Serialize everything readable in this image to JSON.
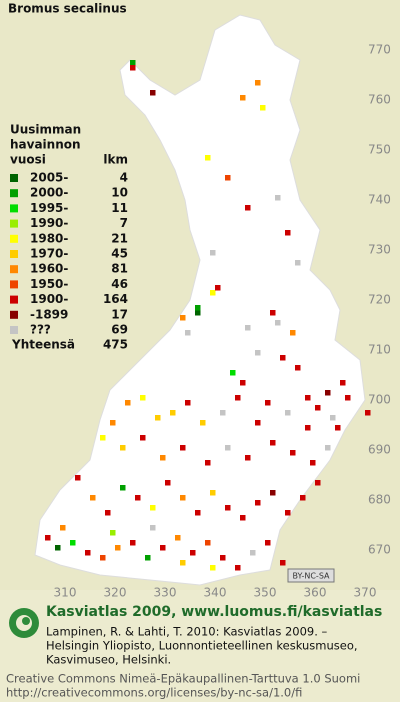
{
  "chart_data": {
    "type": "grid-map",
    "title": "Bromus secalinus",
    "legend_title": [
      "Uusimman",
      "havainnon",
      "vuosi"
    ],
    "count_header": "lkm",
    "legend": [
      {
        "label": "2005-",
        "count": 4,
        "color": "#006400"
      },
      {
        "label": "2000-",
        "count": 10,
        "color": "#00a000"
      },
      {
        "label": "1995-",
        "count": 11,
        "color": "#00dd00"
      },
      {
        "label": "1990-",
        "count": 7,
        "color": "#99ee00"
      },
      {
        "label": "1980-",
        "count": 21,
        "color": "#ffff00"
      },
      {
        "label": "1970-",
        "count": 45,
        "color": "#ffcc00"
      },
      {
        "label": "1960-",
        "count": 81,
        "color": "#ff8800"
      },
      {
        "label": "1950-",
        "count": 46,
        "color": "#ee4400"
      },
      {
        "label": "1900-",
        "count": 164,
        "color": "#cc0000"
      },
      {
        "label": "-1899",
        "count": 17,
        "color": "#880000"
      },
      {
        "label": "???",
        "count": 69,
        "color": "#c4c4c4"
      }
    ],
    "total_label": "Yhteensä",
    "total": 475,
    "xlim": [
      297,
      374
    ],
    "ylim": [
      662,
      780
    ],
    "yticks": [
      770,
      760,
      750,
      740,
      730,
      720,
      710,
      700,
      690,
      680,
      670
    ],
    "xticks": [
      310,
      320,
      330,
      340,
      350,
      360,
      370
    ],
    "squares": [
      [
        323,
        767,
        1
      ],
      [
        323,
        766,
        8
      ],
      [
        327,
        761,
        9
      ],
      [
        348,
        763,
        6
      ],
      [
        349,
        758,
        4
      ],
      [
        338,
        748,
        4
      ],
      [
        342,
        744,
        7
      ],
      [
        346,
        738,
        8
      ],
      [
        354,
        733,
        8
      ],
      [
        352,
        740,
        10
      ],
      [
        345,
        760,
        6
      ],
      [
        339,
        729,
        10
      ],
      [
        356,
        727,
        10
      ],
      [
        339,
        721,
        4
      ],
      [
        340,
        722,
        8
      ],
      [
        336,
        717,
        0
      ],
      [
        336,
        718,
        1
      ],
      [
        333,
        716,
        6
      ],
      [
        334,
        713,
        10
      ],
      [
        346,
        714,
        10
      ],
      [
        351,
        717,
        8
      ],
      [
        352,
        715,
        10
      ],
      [
        355,
        713,
        6
      ],
      [
        343,
        705,
        2
      ],
      [
        345,
        703,
        8
      ],
      [
        348,
        709,
        10
      ],
      [
        353,
        708,
        8
      ],
      [
        356,
        706,
        8
      ],
      [
        358,
        700,
        8
      ],
      [
        360,
        698,
        8
      ],
      [
        362,
        701,
        9
      ],
      [
        365,
        703,
        8
      ],
      [
        366,
        700,
        8
      ],
      [
        363,
        696,
        10
      ],
      [
        358,
        694,
        8
      ],
      [
        354,
        697,
        10
      ],
      [
        350,
        699,
        8
      ],
      [
        348,
        695,
        8
      ],
      [
        344,
        700,
        8
      ],
      [
        341,
        697,
        10
      ],
      [
        337,
        695,
        5
      ],
      [
        334,
        699,
        8
      ],
      [
        331,
        697,
        5
      ],
      [
        328,
        696,
        5
      ],
      [
        325,
        700,
        4
      ],
      [
        322,
        699,
        6
      ],
      [
        319,
        695,
        6
      ],
      [
        317,
        692,
        4
      ],
      [
        321,
        690,
        5
      ],
      [
        325,
        692,
        8
      ],
      [
        329,
        688,
        6
      ],
      [
        333,
        690,
        8
      ],
      [
        338,
        687,
        8
      ],
      [
        342,
        690,
        10
      ],
      [
        346,
        688,
        8
      ],
      [
        351,
        691,
        8
      ],
      [
        355,
        689,
        8
      ],
      [
        359,
        687,
        8
      ],
      [
        362,
        690,
        10
      ],
      [
        364,
        694,
        8
      ],
      [
        370,
        697,
        8
      ],
      [
        312,
        684,
        8
      ],
      [
        315,
        680,
        6
      ],
      [
        318,
        677,
        8
      ],
      [
        321,
        682,
        1
      ],
      [
        324,
        680,
        8
      ],
      [
        327,
        678,
        4
      ],
      [
        330,
        683,
        8
      ],
      [
        333,
        680,
        6
      ],
      [
        336,
        677,
        8
      ],
      [
        339,
        681,
        5
      ],
      [
        342,
        678,
        8
      ],
      [
        345,
        676,
        8
      ],
      [
        348,
        679,
        8
      ],
      [
        351,
        681,
        9
      ],
      [
        354,
        677,
        8
      ],
      [
        357,
        680,
        8
      ],
      [
        360,
        683,
        8
      ],
      [
        306,
        672,
        8
      ],
      [
        308,
        670,
        0
      ],
      [
        311,
        671,
        2
      ],
      [
        314,
        669,
        8
      ],
      [
        317,
        668,
        7
      ],
      [
        320,
        670,
        6
      ],
      [
        323,
        671,
        8
      ],
      [
        326,
        668,
        1
      ],
      [
        329,
        670,
        8
      ],
      [
        332,
        672,
        6
      ],
      [
        335,
        669,
        8
      ],
      [
        338,
        671,
        7
      ],
      [
        341,
        668,
        8
      ],
      [
        344,
        666,
        8
      ],
      [
        347,
        669,
        10
      ],
      [
        350,
        671,
        8
      ],
      [
        353,
        667,
        8
      ],
      [
        319,
        673,
        3
      ],
      [
        327,
        674,
        10
      ],
      [
        333,
        667,
        5
      ],
      [
        339,
        666,
        4
      ],
      [
        309,
        674,
        6
      ]
    ],
    "cc_badge": "BY-NC-SA"
  },
  "footer": {
    "brand": "Kasviatlas 2009, www.luomus.fi/kasviatlas",
    "reference": [
      "Lampinen, R. & Lahti, T. 2010: Kasviatlas 2009. –",
      "Helsingin Yliopisto, Luonnontieteellinen keskusmuseo,",
      "Kasvimuseo, Helsinki."
    ],
    "license": [
      "Creative Commons Nimeä-Epäkaupallinen-Tarttuva 1.0 Suomi",
      "http://creativecommons.org/licenses/by-nc-sa/1.0/fi"
    ]
  }
}
